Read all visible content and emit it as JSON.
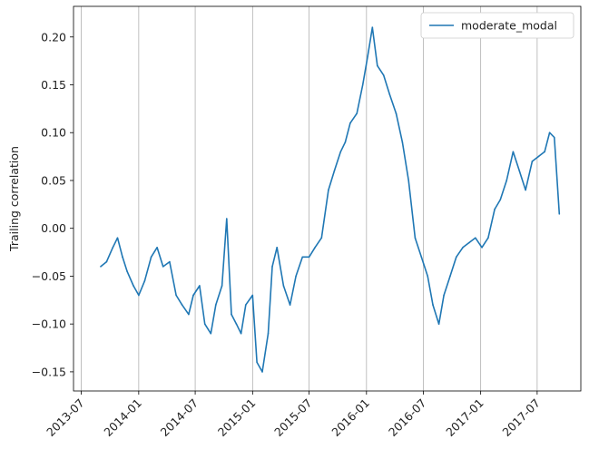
{
  "chart_data": {
    "type": "line",
    "title": "",
    "xlabel": "",
    "ylabel": "Trailing correlation",
    "x_ticks": [
      "2013-07",
      "2014-01",
      "2014-07",
      "2015-01",
      "2015-07",
      "2016-01",
      "2016-07",
      "2017-01",
      "2017-07"
    ],
    "y_ticks": [
      "−0.15",
      "−0.10",
      "−0.05",
      "0.00",
      "0.05",
      "0.10",
      "0.15",
      "0.20"
    ],
    "xlim": [
      "2013-06-06",
      "2017-11-18"
    ],
    "ylim": [
      -0.17,
      0.232
    ],
    "grid": "vertical lines at x ticks",
    "legend_position": "top-right",
    "colors": {
      "series": "#1f77b4",
      "grid": "#b0b0b0",
      "axis": "#000000"
    },
    "series": [
      {
        "name": "moderate_modal",
        "x": [
          "2013-09-01",
          "2013-09-20",
          "2013-10-10",
          "2013-10-25",
          "2013-11-10",
          "2013-11-25",
          "2013-12-15",
          "2014-01-01",
          "2014-01-20",
          "2014-02-10",
          "2014-03-01",
          "2014-03-20",
          "2014-04-10",
          "2014-05-01",
          "2014-05-20",
          "2014-06-10",
          "2014-06-25",
          "2014-07-15",
          "2014-08-01",
          "2014-08-20",
          "2014-09-05",
          "2014-09-25",
          "2014-10-10",
          "2014-10-25",
          "2014-11-10",
          "2014-11-25",
          "2014-12-10",
          "2015-01-01",
          "2015-01-15",
          "2015-02-01",
          "2015-02-20",
          "2015-03-05",
          "2015-03-20",
          "2015-04-10",
          "2015-05-01",
          "2015-05-20",
          "2015-06-10",
          "2015-07-01",
          "2015-07-20",
          "2015-08-10",
          "2015-09-01",
          "2015-09-20",
          "2015-10-10",
          "2015-10-25",
          "2015-11-10",
          "2015-12-01",
          "2015-12-20",
          "2016-01-05",
          "2016-01-20",
          "2016-02-05",
          "2016-02-25",
          "2016-03-15",
          "2016-04-05",
          "2016-04-25",
          "2016-05-15",
          "2016-06-05",
          "2016-06-25",
          "2016-07-15",
          "2016-08-01",
          "2016-08-20",
          "2016-09-05",
          "2016-09-25",
          "2016-10-15",
          "2016-11-05",
          "2016-11-25",
          "2016-12-15",
          "2017-01-05",
          "2017-01-25",
          "2017-02-15",
          "2017-03-05",
          "2017-03-25",
          "2017-04-15",
          "2017-05-05",
          "2017-05-25",
          "2017-06-15",
          "2017-07-05",
          "2017-07-25",
          "2017-08-10",
          "2017-08-25",
          "2017-09-10"
        ],
        "y": [
          -0.04,
          -0.035,
          -0.02,
          -0.01,
          -0.03,
          -0.045,
          -0.06,
          -0.07,
          -0.055,
          -0.03,
          -0.02,
          -0.04,
          -0.035,
          -0.07,
          -0.08,
          -0.09,
          -0.07,
          -0.06,
          -0.1,
          -0.11,
          -0.08,
          -0.06,
          0.01,
          -0.09,
          -0.1,
          -0.11,
          -0.08,
          -0.07,
          -0.14,
          -0.15,
          -0.11,
          -0.04,
          -0.02,
          -0.06,
          -0.08,
          -0.05,
          -0.03,
          -0.03,
          -0.02,
          -0.01,
          0.04,
          0.06,
          0.08,
          0.09,
          0.11,
          0.12,
          0.15,
          0.18,
          0.21,
          0.17,
          0.16,
          0.14,
          0.12,
          0.09,
          0.05,
          -0.01,
          -0.03,
          -0.05,
          -0.08,
          -0.1,
          -0.07,
          -0.05,
          -0.03,
          -0.02,
          -0.015,
          -0.01,
          -0.02,
          -0.01,
          0.02,
          0.03,
          0.05,
          0.08,
          0.06,
          0.04,
          0.07,
          0.075,
          0.08,
          0.1,
          0.095,
          0.015
        ]
      }
    ]
  }
}
